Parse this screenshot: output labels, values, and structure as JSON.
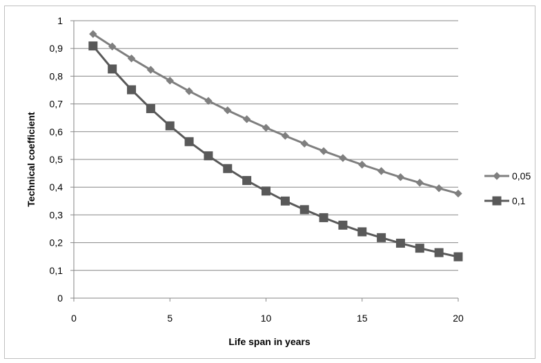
{
  "chart_data": {
    "type": "line",
    "title": "",
    "xlabel": "Life span in years",
    "ylabel": "Technical coefficient",
    "xlim": [
      0,
      20
    ],
    "ylim": [
      0,
      1
    ],
    "x_ticks": [
      0,
      5,
      10,
      15,
      20
    ],
    "x_tick_labels": [
      "0",
      "5",
      "10",
      "15",
      "20"
    ],
    "y_ticks": [
      0,
      0.1,
      0.2,
      0.3,
      0.4,
      0.5,
      0.6,
      0.7,
      0.8,
      0.9,
      1
    ],
    "y_tick_labels": [
      "0",
      "0,1",
      "0,2",
      "0,3",
      "0,4",
      "0,5",
      "0,6",
      "0,7",
      "0,8",
      "0,9",
      "1"
    ],
    "grid": "horizontal",
    "legend_position": "right",
    "x": [
      1,
      2,
      3,
      4,
      5,
      6,
      7,
      8,
      9,
      10,
      11,
      12,
      13,
      14,
      15,
      16,
      17,
      18,
      19,
      20
    ],
    "series": [
      {
        "name": "0,05",
        "marker": "diamond",
        "color": "#7f7f7f",
        "values": [
          0.952,
          0.907,
          0.864,
          0.823,
          0.784,
          0.746,
          0.711,
          0.677,
          0.645,
          0.614,
          0.585,
          0.557,
          0.53,
          0.505,
          0.481,
          0.458,
          0.436,
          0.416,
          0.396,
          0.377
        ]
      },
      {
        "name": "0,1",
        "marker": "square",
        "color": "#595959",
        "values": [
          0.909,
          0.826,
          0.751,
          0.683,
          0.621,
          0.564,
          0.513,
          0.467,
          0.424,
          0.386,
          0.35,
          0.319,
          0.29,
          0.263,
          0.239,
          0.218,
          0.198,
          0.18,
          0.164,
          0.149
        ]
      }
    ]
  }
}
